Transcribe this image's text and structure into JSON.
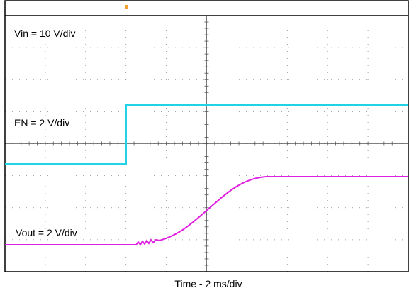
{
  "labels": {
    "vin": "Vin = 10 V/div",
    "en": "EN = 2 V/div",
    "vout": "Vout = 2 V/div",
    "time": "Time - 2 ms/div"
  }
}
